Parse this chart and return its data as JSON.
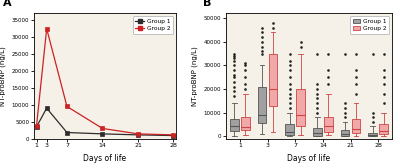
{
  "panel_A": {
    "label": "A",
    "days": [
      1,
      3,
      7,
      14,
      21,
      28
    ],
    "group1_means": [
      3500,
      9000,
      1800,
      1400,
      1100,
      900
    ],
    "group2_means": [
      3800,
      32500,
      9500,
      3000,
      1400,
      1100
    ],
    "group1_color": "#2d2d2d",
    "group2_color": "#cc2222",
    "xlabel": "Days of life",
    "ylabel": "NT-proBNP (ng/L)",
    "yticks": [
      0,
      5000,
      10000,
      15000,
      20000,
      25000,
      30000,
      35000
    ],
    "yticklabels": [
      "0",
      "5000",
      "10000",
      "15000",
      "20000",
      "25000",
      "30000",
      "35000"
    ],
    "ylim": [
      0,
      37000
    ],
    "xlim": [
      0.5,
      28.5
    ]
  },
  "panel_B": {
    "label": "B",
    "days": [
      1,
      3,
      7,
      14,
      21,
      28
    ],
    "xlabel": "Days of life",
    "ylabel": "NT-proBNP (ng/L)",
    "ylim": [
      -1000,
      52000
    ],
    "yticks": [
      0,
      10000,
      20000,
      30000,
      40000,
      50000
    ],
    "yticklabels": [
      "0",
      "10000",
      "20000",
      "30000",
      "40000",
      "50000"
    ],
    "group1_color": "#a0a0a0",
    "group2_color": "#f0a8a8",
    "group1_edge": "#555555",
    "group2_edge": "#cc4444",
    "group1_flier_color": "#222222",
    "group2_flier_color": "#cc2222",
    "group1_data": {
      "1": {
        "q1": 2200,
        "med": 4500,
        "q3": 7500,
        "whislo": 300,
        "whishi": 14000,
        "fliers_lo": [],
        "fliers_hi": [
          17000,
          19000,
          21000,
          23000,
          25000,
          26000,
          28000,
          30000,
          32000,
          33000,
          34000,
          35000
        ]
      },
      "3": {
        "q1": 5500,
        "med": 9000,
        "q3": 21000,
        "whislo": 800,
        "whishi": 30000,
        "fliers_lo": [],
        "fliers_hi": [
          35000,
          36000,
          38000,
          40000,
          42000,
          44000,
          46000
        ]
      },
      "7": {
        "q1": 400,
        "med": 1800,
        "q3": 5000,
        "whislo": 50,
        "whishi": 10000,
        "fliers_lo": [],
        "fliers_hi": [
          12000,
          14000,
          16000,
          18000,
          20000,
          22000,
          25000,
          28000,
          30000,
          32000,
          35000
        ]
      },
      "14": {
        "q1": 300,
        "med": 1200,
        "q3": 3500,
        "whislo": 50,
        "whishi": 8000,
        "fliers_lo": [],
        "fliers_hi": [
          10000,
          12000,
          14000,
          16000,
          18000,
          20000,
          22000,
          35000
        ]
      },
      "21": {
        "q1": 200,
        "med": 800,
        "q3": 2500,
        "whislo": 50,
        "whishi": 6000,
        "fliers_lo": [],
        "fliers_hi": [
          8000,
          10000,
          12000,
          14000,
          35000
        ]
      },
      "28": {
        "q1": 150,
        "med": 600,
        "q3": 1500,
        "whislo": 50,
        "whishi": 4500,
        "fliers_lo": [],
        "fliers_hi": [
          6000,
          8000,
          10000,
          35000
        ]
      }
    },
    "group2_data": {
      "1": {
        "q1": 2500,
        "med": 4000,
        "q3": 8000,
        "whislo": 400,
        "whishi": 18000,
        "fliers_lo": [],
        "fliers_hi": [
          20000,
          22000,
          25000,
          28000,
          30000,
          31000
        ]
      },
      "3": {
        "q1": 13000,
        "med": 20000,
        "q3": 35000,
        "whislo": 2000,
        "whishi": 44000,
        "fliers_lo": [],
        "fliers_hi": [
          46000,
          48000
        ]
      },
      "7": {
        "q1": 4500,
        "med": 9000,
        "q3": 20000,
        "whislo": 500,
        "whishi": 35000,
        "fliers_lo": [],
        "fliers_hi": [
          38000,
          40000
        ]
      },
      "14": {
        "q1": 2000,
        "med": 4500,
        "q3": 8000,
        "whislo": 400,
        "whishi": 18000,
        "fliers_lo": [],
        "fliers_hi": [
          22000,
          25000,
          28000,
          35000
        ]
      },
      "21": {
        "q1": 1500,
        "med": 3000,
        "q3": 7500,
        "whislo": 300,
        "whishi": 14000,
        "fliers_lo": [],
        "fliers_hi": [
          18000,
          22000,
          25000,
          28000,
          35000
        ]
      },
      "28": {
        "q1": 800,
        "med": 2200,
        "q3": 5000,
        "whislo": 200,
        "whishi": 10000,
        "fliers_lo": [],
        "fliers_hi": [
          14000,
          18000,
          22000,
          25000,
          28000,
          35000
        ]
      }
    }
  },
  "plot_bg": "#f5f0e8",
  "fig_bg": "#ffffff"
}
